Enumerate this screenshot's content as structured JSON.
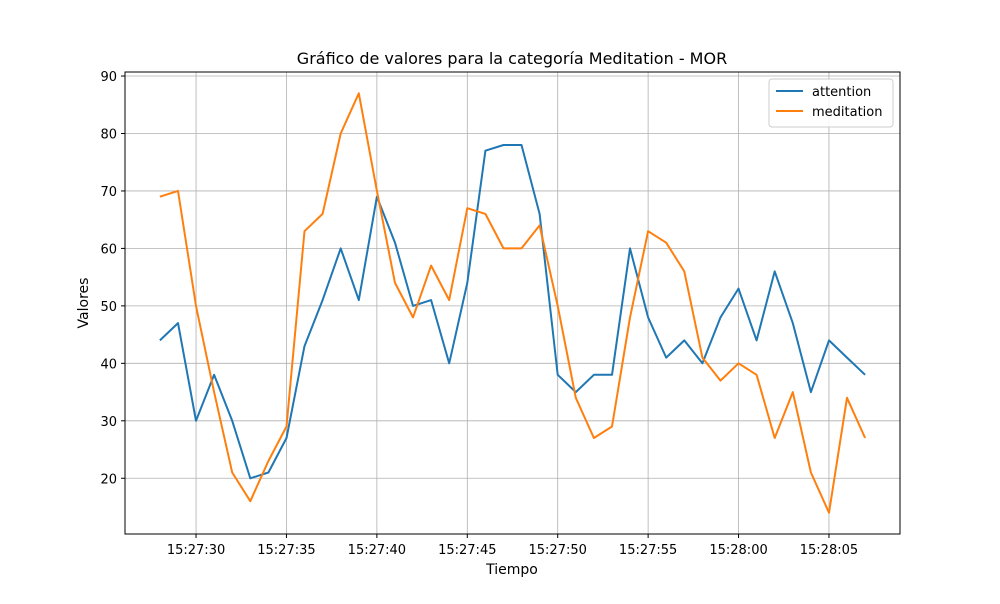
{
  "chart_data": {
    "type": "line",
    "title": "Gráfico de valores para la categoría Meditation - MOR",
    "xlabel": "Tiempo",
    "ylabel": "Valores",
    "x": [
      "15:27:28",
      "15:27:29",
      "15:27:30",
      "15:27:31",
      "15:27:32",
      "15:27:33",
      "15:27:34",
      "15:27:35",
      "15:27:36",
      "15:27:37",
      "15:27:38",
      "15:27:39",
      "15:27:40",
      "15:27:41",
      "15:27:42",
      "15:27:43",
      "15:27:44",
      "15:27:45",
      "15:27:46",
      "15:27:47",
      "15:27:48",
      "15:27:49",
      "15:27:50",
      "15:27:51",
      "15:27:52",
      "15:27:53",
      "15:27:54",
      "15:27:55",
      "15:27:56",
      "15:27:57",
      "15:27:58",
      "15:27:59",
      "15:28:00",
      "15:28:01",
      "15:28:02",
      "15:28:03",
      "15:28:04",
      "15:28:05",
      "15:28:06",
      "15:28:07"
    ],
    "x_ticks": [
      "15:27:30",
      "15:27:35",
      "15:27:40",
      "15:27:45",
      "15:27:50",
      "15:27:55",
      "15:28:00",
      "15:28:05"
    ],
    "y_ticks": [
      20,
      30,
      40,
      50,
      60,
      70,
      80,
      90
    ],
    "ylim": [
      10.3,
      90.7
    ],
    "grid": true,
    "legend_position": "upper right",
    "series": [
      {
        "name": "attention",
        "color": "#1f77b4",
        "values": [
          44,
          47,
          30,
          38,
          30,
          20,
          21,
          27,
          43,
          51,
          60,
          51,
          69,
          61,
          50,
          51,
          40,
          54,
          77,
          78,
          78,
          66,
          38,
          35,
          38,
          38,
          60,
          48,
          41,
          44,
          40,
          48,
          53,
          44,
          56,
          47,
          35,
          44,
          41,
          38
        ]
      },
      {
        "name": "meditation",
        "color": "#ff7f0e",
        "values": [
          69,
          70,
          50,
          35,
          21,
          16,
          23,
          29,
          63,
          66,
          80,
          87,
          70,
          54,
          48,
          57,
          51,
          67,
          66,
          60,
          60,
          64,
          50,
          34,
          27,
          29,
          48,
          63,
          61,
          56,
          41,
          37,
          40,
          38,
          27,
          35,
          21,
          14,
          34,
          27
        ]
      }
    ]
  }
}
